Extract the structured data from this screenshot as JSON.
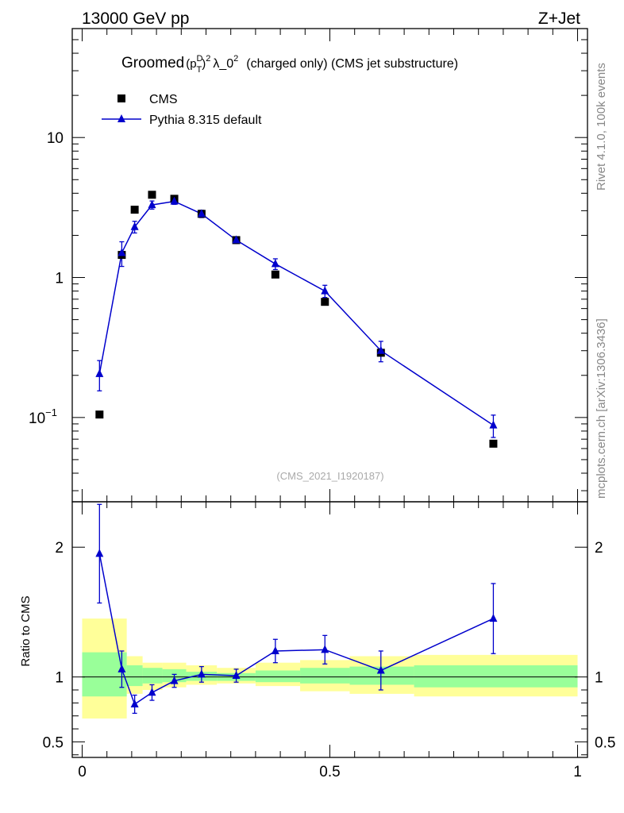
{
  "header": {
    "left": "13000 GeV pp",
    "right": "Z+Jet"
  },
  "title": {
    "prefix": "Groomed",
    "p": "(p",
    "sup_d": "D",
    "sub_t": "T",
    "close": ")",
    "sup_2a": "2",
    "lambda": "λ_0",
    "sup_2b": "2",
    "suffix": "(charged only) (CMS jet substructure)"
  },
  "side_labels": {
    "rivet": "Rivet 4.1.0,  100k events",
    "mcplots": "mcplots.cern.ch [arXiv:1306.3436]"
  },
  "analysis_id": "(CMS_2021_I1920187)",
  "legend": {
    "cms": "CMS",
    "pythia": "Pythia 8.315 default"
  },
  "colors": {
    "data": "#000000",
    "mc": "#0000cc",
    "band_inner": "#99ff99",
    "band_outer": "#ffff99"
  },
  "chart_data": [
    {
      "type": "scatter",
      "panel": "main",
      "yscale": "log",
      "xlim": [
        -0.02,
        1.02
      ],
      "ylim": [
        0.025,
        60
      ],
      "yticks": [
        {
          "value": 0.1,
          "base": "10",
          "exp": "−1"
        },
        {
          "value": 1,
          "label": "1"
        },
        {
          "value": 10,
          "label": "10"
        }
      ],
      "series": [
        {
          "name": "CMS",
          "marker": "square",
          "x": [
            0.035,
            0.08,
            0.106,
            0.141,
            0.186,
            0.241,
            0.311,
            0.39,
            0.49,
            0.603,
            0.83
          ],
          "y": [
            0.105,
            1.45,
            3.05,
            3.9,
            3.65,
            2.85,
            1.85,
            1.05,
            0.67,
            0.29,
            0.065
          ]
        },
        {
          "name": "Pythia 8.315 default",
          "marker": "triangle",
          "x": [
            0.035,
            0.08,
            0.106,
            0.141,
            0.186,
            0.241,
            0.311,
            0.39,
            0.49,
            0.603,
            0.83
          ],
          "y": [
            0.205,
            1.5,
            2.3,
            3.3,
            3.5,
            2.85,
            1.85,
            1.25,
            0.8,
            0.3,
            0.088
          ],
          "yerr": [
            0.05,
            0.3,
            0.22,
            0.22,
            0.17,
            0.17,
            0.1,
            0.11,
            0.08,
            0.05,
            0.016
          ]
        }
      ]
    },
    {
      "type": "scatter",
      "panel": "ratio",
      "ylabel": "Ratio to CMS",
      "xlim": [
        -0.02,
        1.02
      ],
      "ylim": [
        0.38,
        2.35
      ],
      "xticks": [
        {
          "value": 0,
          "label": "0"
        },
        {
          "value": 0.5,
          "label": "0.5"
        },
        {
          "value": 1,
          "label": "1"
        }
      ],
      "yticks": [
        {
          "value": 0.5,
          "label": "0.5"
        },
        {
          "value": 1,
          "label": "1"
        },
        {
          "value": 2,
          "label": "2"
        }
      ],
      "bands": [
        {
          "x0": 0.0,
          "x1": 0.09,
          "inner": [
            0.85,
            1.19
          ],
          "outer": [
            0.68,
            1.45
          ]
        },
        {
          "x0": 0.09,
          "x1": 0.122,
          "inner": [
            0.93,
            1.09
          ],
          "outer": [
            0.87,
            1.16
          ]
        },
        {
          "x0": 0.122,
          "x1": 0.162,
          "inner": [
            0.95,
            1.07
          ],
          "outer": [
            0.9,
            1.11
          ]
        },
        {
          "x0": 0.162,
          "x1": 0.21,
          "inner": [
            0.96,
            1.06
          ],
          "outer": [
            0.92,
            1.11
          ]
        },
        {
          "x0": 0.21,
          "x1": 0.272,
          "inner": [
            0.97,
            1.04
          ],
          "outer": [
            0.94,
            1.09
          ]
        },
        {
          "x0": 0.272,
          "x1": 0.35,
          "inner": [
            0.97,
            1.03
          ],
          "outer": [
            0.95,
            1.07
          ]
        },
        {
          "x0": 0.35,
          "x1": 0.44,
          "inner": [
            0.96,
            1.05
          ],
          "outer": [
            0.93,
            1.11
          ]
        },
        {
          "x0": 0.44,
          "x1": 0.54,
          "inner": [
            0.95,
            1.07
          ],
          "outer": [
            0.89,
            1.13
          ]
        },
        {
          "x0": 0.54,
          "x1": 0.67,
          "inner": [
            0.94,
            1.08
          ],
          "outer": [
            0.87,
            1.16
          ]
        },
        {
          "x0": 0.67,
          "x1": 1.0,
          "inner": [
            0.92,
            1.09
          ],
          "outer": [
            0.85,
            1.17
          ]
        }
      ],
      "series": [
        {
          "name": "Pythia 8.315 default / CMS",
          "marker": "triangle",
          "x": [
            0.035,
            0.08,
            0.106,
            0.141,
            0.186,
            0.241,
            0.311,
            0.39,
            0.49,
            0.603,
            0.83
          ],
          "y": [
            1.95,
            1.06,
            0.79,
            0.88,
            0.97,
            1.02,
            1.01,
            1.2,
            1.21,
            1.05,
            1.45
          ],
          "yerr": [
            0.38,
            0.14,
            0.07,
            0.06,
            0.05,
            0.06,
            0.05,
            0.09,
            0.11,
            0.15,
            0.27
          ]
        }
      ]
    }
  ]
}
